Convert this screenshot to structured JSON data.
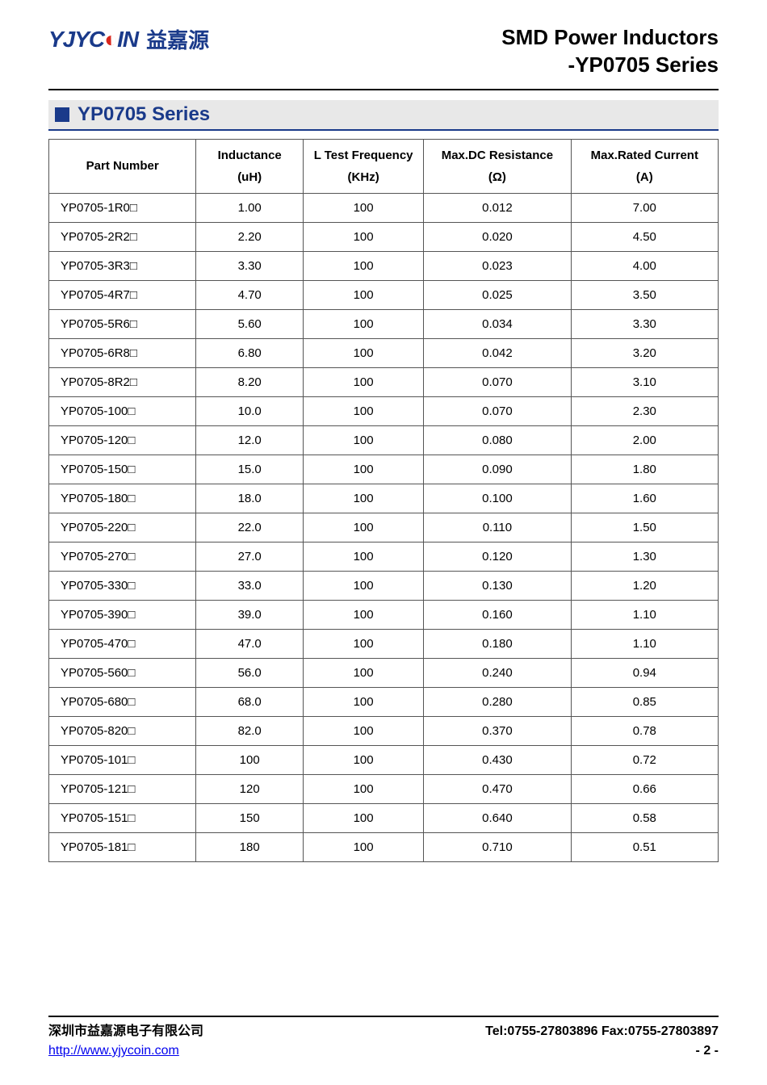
{
  "header": {
    "logo_en": "YJYC",
    "logo_en2": "IN",
    "logo_cn": "益嘉源",
    "title_line1": "SMD Power Inductors",
    "title_line2": "-YP0705 Series"
  },
  "section": {
    "title": "YP0705 Series"
  },
  "table": {
    "columns": [
      {
        "label": "Part Number",
        "unit": ""
      },
      {
        "label": "Inductance",
        "unit": "(uH)"
      },
      {
        "label": "L Test Frequency",
        "unit": "(KHz)"
      },
      {
        "label": "Max.DC Resistance",
        "unit": "(Ω)"
      },
      {
        "label": "Max.Rated Current",
        "unit": "(A)"
      }
    ],
    "suffix": "□",
    "rows": [
      {
        "pn": "YP0705-1R0",
        "ind": "1.00",
        "freq": "100",
        "dcr": "0.012",
        "cur": "7.00"
      },
      {
        "pn": "YP0705-2R2",
        "ind": "2.20",
        "freq": "100",
        "dcr": "0.020",
        "cur": "4.50"
      },
      {
        "pn": "YP0705-3R3",
        "ind": "3.30",
        "freq": "100",
        "dcr": "0.023",
        "cur": "4.00"
      },
      {
        "pn": "YP0705-4R7",
        "ind": "4.70",
        "freq": "100",
        "dcr": "0.025",
        "cur": "3.50"
      },
      {
        "pn": "YP0705-5R6",
        "ind": "5.60",
        "freq": "100",
        "dcr": "0.034",
        "cur": "3.30"
      },
      {
        "pn": "YP0705-6R8",
        "ind": "6.80",
        "freq": "100",
        "dcr": "0.042",
        "cur": "3.20"
      },
      {
        "pn": "YP0705-8R2",
        "ind": "8.20",
        "freq": "100",
        "dcr": "0.070",
        "cur": "3.10"
      },
      {
        "pn": "YP0705-100",
        "ind": "10.0",
        "freq": "100",
        "dcr": "0.070",
        "cur": "2.30"
      },
      {
        "pn": "YP0705-120",
        "ind": "12.0",
        "freq": "100",
        "dcr": "0.080",
        "cur": "2.00"
      },
      {
        "pn": "YP0705-150",
        "ind": "15.0",
        "freq": "100",
        "dcr": "0.090",
        "cur": "1.80"
      },
      {
        "pn": "YP0705-180",
        "ind": "18.0",
        "freq": "100",
        "dcr": "0.100",
        "cur": "1.60"
      },
      {
        "pn": "YP0705-220",
        "ind": "22.0",
        "freq": "100",
        "dcr": "0.110",
        "cur": "1.50"
      },
      {
        "pn": "YP0705-270",
        "ind": "27.0",
        "freq": "100",
        "dcr": "0.120",
        "cur": "1.30"
      },
      {
        "pn": "YP0705-330",
        "ind": "33.0",
        "freq": "100",
        "dcr": "0.130",
        "cur": "1.20"
      },
      {
        "pn": "YP0705-390",
        "ind": "39.0",
        "freq": "100",
        "dcr": "0.160",
        "cur": "1.10"
      },
      {
        "pn": "YP0705-470",
        "ind": "47.0",
        "freq": "100",
        "dcr": "0.180",
        "cur": "1.10"
      },
      {
        "pn": "YP0705-560",
        "ind": "56.0",
        "freq": "100",
        "dcr": "0.240",
        "cur": "0.94"
      },
      {
        "pn": "YP0705-680",
        "ind": "68.0",
        "freq": "100",
        "dcr": "0.280",
        "cur": "0.85"
      },
      {
        "pn": "YP0705-820",
        "ind": "82.0",
        "freq": "100",
        "dcr": "0.370",
        "cur": "0.78"
      },
      {
        "pn": "YP0705-101",
        "ind": "100",
        "freq": "100",
        "dcr": "0.430",
        "cur": "0.72"
      },
      {
        "pn": "YP0705-121",
        "ind": "120",
        "freq": "100",
        "dcr": "0.470",
        "cur": "0.66"
      },
      {
        "pn": "YP0705-151",
        "ind": "150",
        "freq": "100",
        "dcr": "0.640",
        "cur": "0.58"
      },
      {
        "pn": "YP0705-181",
        "ind": "180",
        "freq": "100",
        "dcr": "0.710",
        "cur": "0.51"
      }
    ]
  },
  "footer": {
    "company": "深圳市益嘉源电子有限公司",
    "tel_fax": "Tel:0755-27803896   Fax:0755-27803897",
    "url": "http://www.yjycoin.com",
    "page": "- 2 -"
  },
  "colors": {
    "brand": "#1a3a8a",
    "section_bg": "#e8e8e8",
    "border": "#555555",
    "link": "#0000ee"
  }
}
